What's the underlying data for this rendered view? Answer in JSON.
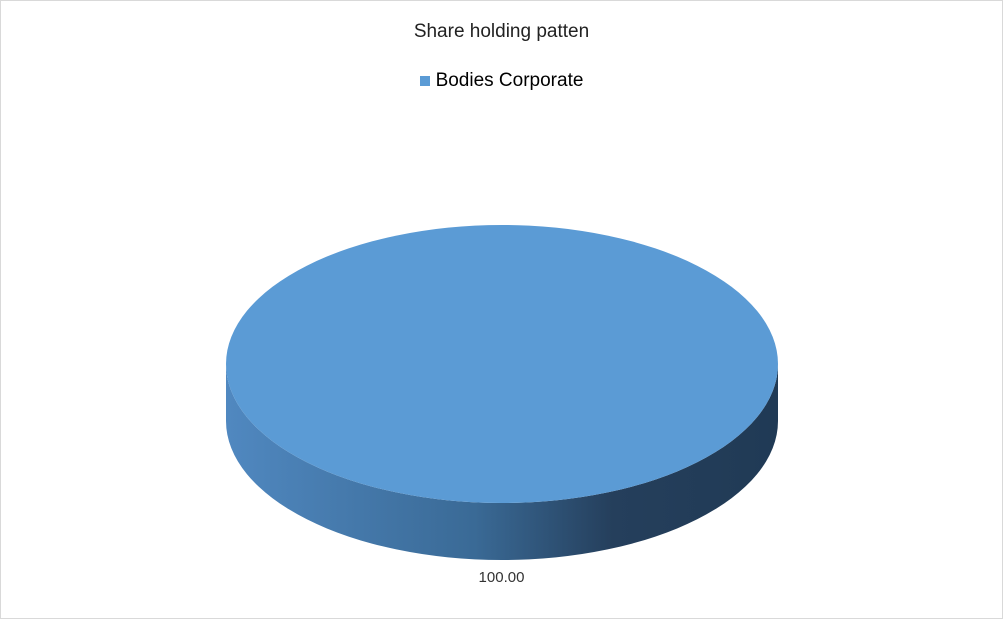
{
  "chart_data": {
    "type": "pie",
    "style": "3d",
    "title": "Share holding patten",
    "categories": [
      "Bodies Corporate"
    ],
    "values": [
      100.0
    ],
    "data_labels": [
      "100.00"
    ],
    "legend": {
      "placement": "top",
      "entries": [
        "Bodies Corporate"
      ]
    },
    "colors": {
      "Bodies Corporate": "#5b9bd5",
      "side_dark": "#203a55"
    }
  }
}
